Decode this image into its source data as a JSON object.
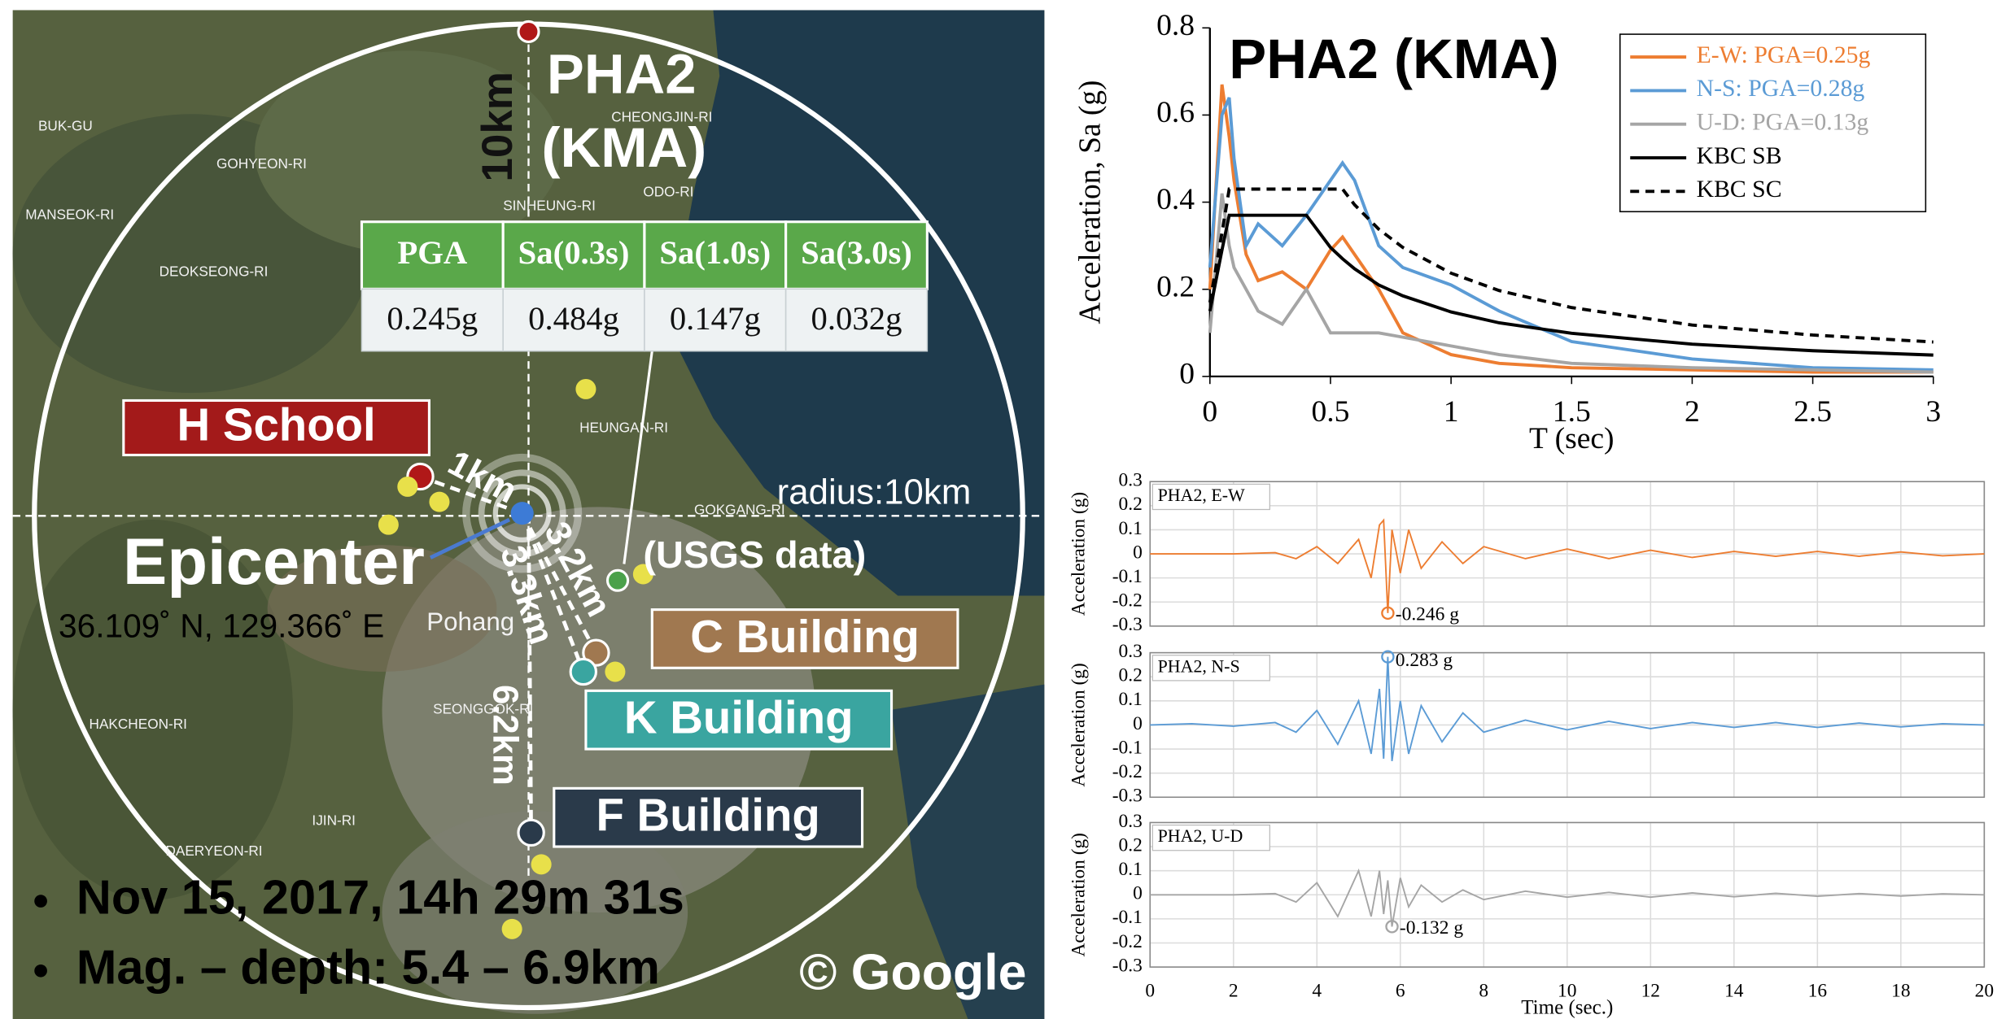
{
  "map": {
    "station": [
      "PHA2",
      "(KMA)"
    ],
    "radius_north": "10km",
    "h_school": "H School",
    "epicenter": "Epicenter",
    "coords": "36.109˚ N, 129.366˚ E",
    "radius": "radius:10km",
    "usgs": "(USGS data)",
    "c_building": "C Building",
    "k_building": "K Building",
    "f_building": "F Building",
    "d1": "1km",
    "d2": "3.2km",
    "d3": "3.3km",
    "d4": "6.2km",
    "event": [
      "Nov 15, 2017, 14h 29m 31s",
      "Mag. – depth: 5.4 – 6.9km"
    ],
    "credit": "© Google",
    "place_names": [
      "BUK-GU",
      "GOHYEON-RI",
      "MANSEOK-RI",
      "DEOKSEONG-RI",
      "CHEONGJIN-RI",
      "SINHEUNG-RI",
      "ODO-RI",
      "HEUNGAN-RI",
      "GOKGANG-RI",
      "SEONGGOK-RI",
      "HAKCHEON-RI",
      "IJIN-RI",
      "DAERYEON-RI",
      "Pohang"
    ],
    "table": {
      "header": [
        "PGA",
        "Sa(0.3s)",
        "Sa(1.0s)",
        "Sa(3.0s)"
      ],
      "rows": [
        [
          "0.245g",
          "0.484g",
          "0.147g",
          "0.032g"
        ]
      ]
    }
  },
  "chart_data": [
    {
      "type": "line",
      "title": "PHA2 (KMA)",
      "x_label": "T (sec)",
      "y_label": "Acceleration, Sa (g)",
      "x": [
        0,
        0.05,
        0.08,
        0.1,
        0.15,
        0.2,
        0.3,
        0.4,
        0.5,
        0.55,
        0.6,
        0.7,
        0.8,
        1,
        1.2,
        1.5,
        2,
        2.5,
        3
      ],
      "series": [
        {
          "name": "E-W: PGA=0.25g",
          "color": "#ed7d31",
          "values": [
            0.2,
            0.67,
            0.55,
            0.45,
            0.28,
            0.22,
            0.24,
            0.2,
            0.29,
            0.32,
            0.28,
            0.2,
            0.1,
            0.05,
            0.03,
            0.02,
            0.015,
            0.01,
            0.01
          ]
        },
        {
          "name": "N-S: PGA=0.28g",
          "color": "#5b9bd5",
          "values": [
            0.25,
            0.6,
            0.64,
            0.5,
            0.3,
            0.35,
            0.3,
            0.37,
            0.45,
            0.49,
            0.45,
            0.3,
            0.25,
            0.21,
            0.15,
            0.08,
            0.04,
            0.02,
            0.015
          ]
        },
        {
          "name": "U-D: PGA=0.13g",
          "color": "#a5a5a5",
          "values": [
            0.1,
            0.42,
            0.3,
            0.25,
            0.2,
            0.15,
            0.12,
            0.2,
            0.1,
            0.1,
            0.1,
            0.1,
            0.09,
            0.07,
            0.05,
            0.03,
            0.02,
            0.015,
            0.01
          ]
        },
        {
          "name": "KBC SB",
          "color": "#000000",
          "values": [
            0.15,
            0.29,
            0.37,
            0.37,
            0.37,
            0.37,
            0.37,
            0.37,
            0.296,
            0.27,
            0.247,
            0.21,
            0.185,
            0.148,
            0.123,
            0.099,
            0.074,
            0.059,
            0.049
          ]
        },
        {
          "name": "KBC SC",
          "color": "#000000",
          "style": "dashed",
          "values": [
            0.17,
            0.33,
            0.43,
            0.43,
            0.43,
            0.43,
            0.43,
            0.43,
            0.43,
            0.43,
            0.394,
            0.338,
            0.296,
            0.237,
            0.197,
            0.158,
            0.118,
            0.095,
            0.079
          ]
        }
      ],
      "xlim": [
        0,
        3
      ],
      "xticks": [
        0,
        0.5,
        1,
        1.5,
        2,
        2.5,
        3
      ],
      "ylim": [
        0,
        0.8
      ],
      "yticks": [
        0,
        0.2,
        0.4,
        0.6,
        0.8
      ],
      "legend": "upper right"
    },
    {
      "type": "line",
      "title": "PHA2, E-W",
      "y_label": "Acceleration (g)",
      "color": "#ed7d31",
      "x": [
        0,
        1,
        2,
        3,
        3.5,
        4,
        4.5,
        5,
        5.3,
        5.5,
        5.6,
        5.7,
        5.8,
        6,
        6.2,
        6.5,
        7,
        7.5,
        8,
        9,
        10,
        11,
        12,
        13,
        14,
        15,
        16,
        17,
        18,
        19,
        20
      ],
      "values": [
        0,
        0,
        0,
        0.005,
        -0.02,
        0.03,
        -0.04,
        0.06,
        -0.1,
        0.12,
        0.14,
        -0.246,
        0.1,
        -0.08,
        0.1,
        -0.06,
        0.05,
        -0.04,
        0.03,
        -0.02,
        0.02,
        -0.02,
        0.015,
        -0.015,
        0.01,
        -0.01,
        0.01,
        -0.01,
        0.008,
        -0.008,
        0
      ],
      "peak": {
        "x": 5.7,
        "value": -0.246,
        "label": "-0.246 g"
      },
      "xlim": [
        0,
        20
      ],
      "xticks": [
        0,
        2,
        4,
        6,
        8,
        10,
        12,
        14,
        16,
        18,
        20
      ],
      "xtick_labels": false,
      "ylim": [
        -0.3,
        0.3
      ],
      "yticks": [
        -0.3,
        -0.2,
        -0.1,
        0,
        0.1,
        0.2,
        0.3
      ],
      "grid": true
    },
    {
      "type": "line",
      "title": "PHA2, N-S",
      "y_label": "Acceleration (g)",
      "color": "#5b9bd5",
      "x": [
        0,
        1,
        2,
        3,
        3.5,
        4,
        4.5,
        5,
        5.3,
        5.5,
        5.6,
        5.7,
        5.8,
        6,
        6.2,
        6.5,
        7,
        7.5,
        8,
        9,
        10,
        11,
        12,
        13,
        14,
        15,
        16,
        17,
        18,
        19,
        20
      ],
      "values": [
        0,
        0.005,
        -0.005,
        0.01,
        -0.03,
        0.06,
        -0.08,
        0.1,
        -0.12,
        0.15,
        -0.14,
        0.283,
        -0.15,
        0.1,
        -0.12,
        0.08,
        -0.07,
        0.05,
        -0.03,
        0.02,
        -0.02,
        0.015,
        -0.015,
        0.01,
        -0.01,
        0.01,
        -0.01,
        0.008,
        -0.008,
        0.005,
        0
      ],
      "peak": {
        "x": 5.7,
        "value": 0.283,
        "label": "0.283 g"
      },
      "xlim": [
        0,
        20
      ],
      "xticks": [
        0,
        2,
        4,
        6,
        8,
        10,
        12,
        14,
        16,
        18,
        20
      ],
      "xtick_labels": false,
      "ylim": [
        -0.3,
        0.3
      ],
      "yticks": [
        -0.3,
        -0.2,
        -0.1,
        0,
        0.1,
        0.2,
        0.3
      ],
      "grid": true
    },
    {
      "type": "line",
      "title": "PHA2, U-D",
      "y_label": "Acceleration (g)",
      "x_label": "Time (sec.)",
      "color": "#a5a5a5",
      "x": [
        0,
        1,
        2,
        3,
        3.5,
        4,
        4.5,
        5,
        5.3,
        5.5,
        5.6,
        5.7,
        5.8,
        6,
        6.2,
        6.5,
        7,
        7.5,
        8,
        9,
        10,
        11,
        12,
        13,
        14,
        15,
        16,
        17,
        18,
        19,
        20
      ],
      "values": [
        0,
        0,
        0,
        0.005,
        -0.03,
        0.05,
        -0.09,
        0.1,
        -0.09,
        0.1,
        -0.08,
        0.06,
        -0.132,
        0.07,
        -0.05,
        0.04,
        -0.03,
        0.02,
        -0.02,
        0.015,
        -0.01,
        0.01,
        -0.01,
        0.008,
        -0.008,
        0.006,
        -0.006,
        0.005,
        -0.005,
        0.004,
        0
      ],
      "peak": {
        "x": 5.8,
        "value": -0.132,
        "label": "-0.132 g"
      },
      "xlim": [
        0,
        20
      ],
      "xticks": [
        0,
        2,
        4,
        6,
        8,
        10,
        12,
        14,
        16,
        18,
        20
      ],
      "xtick_labels": true,
      "ylim": [
        -0.3,
        0.3
      ],
      "yticks": [
        -0.3,
        -0.2,
        -0.1,
        0,
        0.1,
        0.2,
        0.3
      ],
      "grid": true
    }
  ]
}
